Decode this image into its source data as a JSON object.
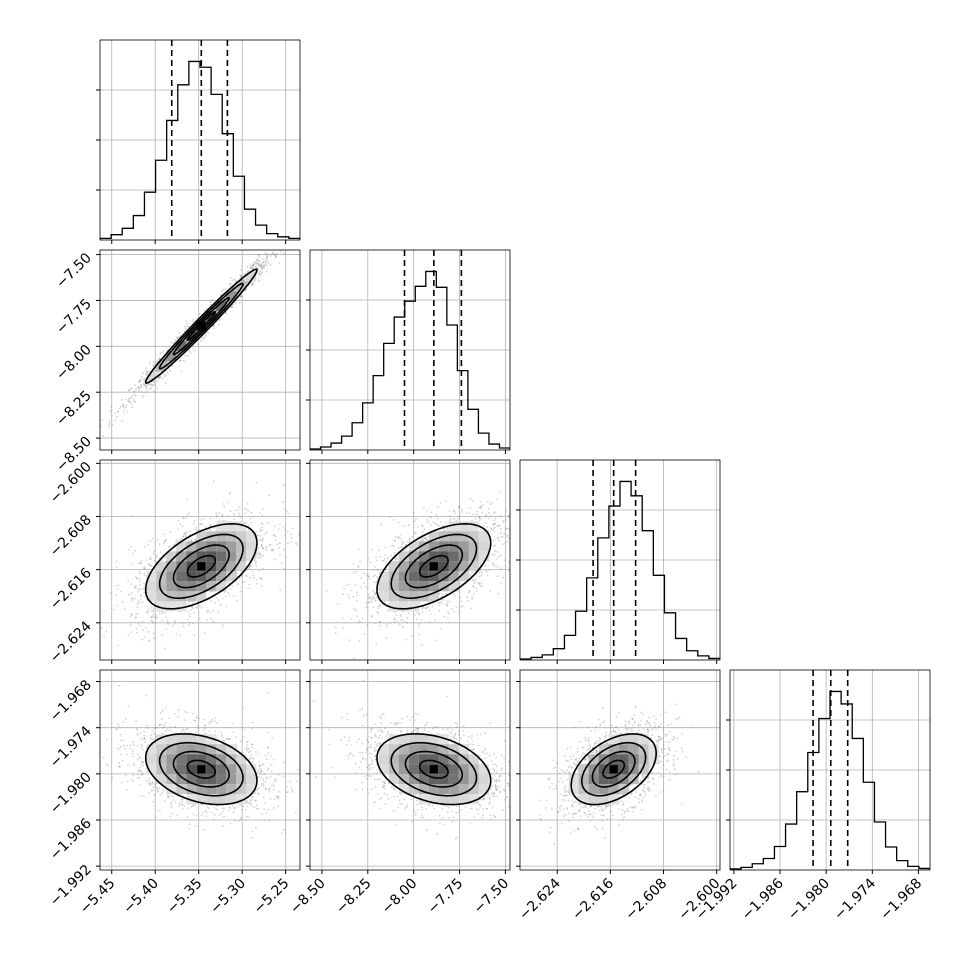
{
  "chart_data": {
    "type": "corner",
    "grid": true,
    "parameters": [
      {
        "ticks": [
          -5.45,
          -5.4,
          -5.35,
          -5.3,
          -5.25
        ],
        "tick_labels": [
          "−5.45",
          "−5.40",
          "−5.35",
          "−5.30",
          "−5.25"
        ],
        "range": [
          -5.4635,
          -5.2335
        ],
        "median": -5.347,
        "q16": -5.381,
        "q84": -5.317,
        "sigma": 0.032
      },
      {
        "ticks": [
          -8.5,
          -8.25,
          -8.0,
          -7.75,
          -7.5
        ],
        "tick_labels": [
          "−8.50",
          "−8.25",
          "−8.00",
          "−7.75",
          "−7.50"
        ],
        "range": [
          -8.565,
          -7.475
        ],
        "median": -7.89,
        "q16": -8.05,
        "q84": -7.74,
        "sigma": 0.155
      },
      {
        "ticks": [
          -2.624,
          -2.616,
          -2.608,
          -2.6
        ],
        "tick_labels": [
          "−2.624",
          "−2.616",
          "−2.608",
          "−2.600"
        ],
        "range": [
          -2.6296,
          -2.5995
        ],
        "median": -2.6155,
        "q16": -2.6186,
        "q84": -2.6122,
        "sigma": 0.0032
      },
      {
        "ticks": [
          -1.992,
          -1.986,
          -1.98,
          -1.974,
          -1.968
        ],
        "tick_labels": [
          "−1.992",
          "−1.986",
          "−1.980",
          "−1.974",
          "−1.968"
        ],
        "range": [
          -1.9925,
          -1.9665
        ],
        "median": -1.9794,
        "q16": -1.9817,
        "q84": -1.9772,
        "sigma": 0.0023
      }
    ],
    "histogram_counts": [
      [
        3,
        10,
        22,
        46,
        90,
        150,
        225,
        292,
        336,
        325,
        274,
        200,
        120,
        58,
        28,
        12,
        6,
        3
      ],
      [
        2,
        6,
        14,
        28,
        55,
        95,
        150,
        215,
        268,
        300,
        330,
        360,
        328,
        252,
        160,
        82,
        34,
        12,
        4
      ],
      [
        2,
        5,
        10,
        22,
        48,
        95,
        160,
        238,
        300,
        348,
        320,
        252,
        165,
        92,
        42,
        18,
        8,
        3
      ],
      [
        2,
        5,
        12,
        22,
        45,
        88,
        150,
        225,
        290,
        342,
        318,
        252,
        168,
        92,
        44,
        18,
        7,
        3
      ]
    ],
    "correlations": [
      [
        1.0,
        0.985,
        0.55,
        -0.32
      ],
      [
        0.985,
        1.0,
        0.55,
        -0.32
      ],
      [
        0.55,
        0.55,
        1.0,
        0.45
      ],
      [
        -0.32,
        -0.32,
        0.45,
        1.0
      ]
    ],
    "colors": {
      "line": "#000000",
      "grid": "#b0b0b0",
      "points": "#808080"
    }
  }
}
